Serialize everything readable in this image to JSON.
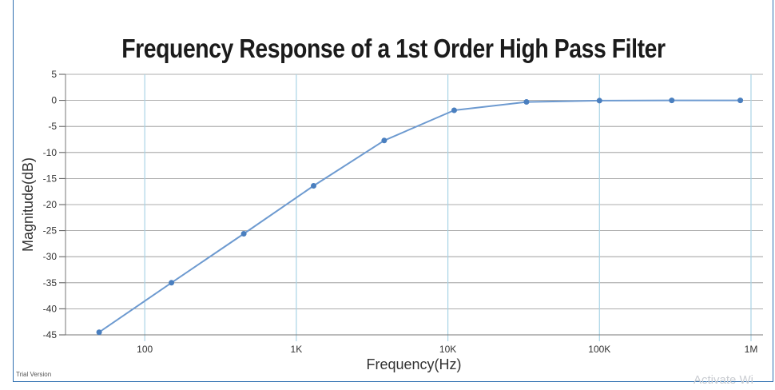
{
  "watermark_text": "Activate Wi",
  "trial_text": "Trial Version",
  "chart_data": {
    "type": "line",
    "title": "Frequency Response of a 1st Order High Pass Filter",
    "xlabel": "Frequency(Hz)",
    "ylabel": "Magnitude(dB)",
    "x_scale": "log",
    "xlim": [
      30,
      1200000
    ],
    "ylim": [
      -45,
      5
    ],
    "x_ticks": [
      {
        "value": 100,
        "label": "100"
      },
      {
        "value": 1000,
        "label": "1K"
      },
      {
        "value": 10000,
        "label": "10K"
      },
      {
        "value": 100000,
        "label": "100K"
      },
      {
        "value": 1000000,
        "label": "1M"
      }
    ],
    "y_ticks": [
      5,
      0,
      -5,
      -10,
      -15,
      -20,
      -25,
      -30,
      -35,
      -40,
      -45
    ],
    "grid": true,
    "legend": "none",
    "colors": {
      "line": "#6d9ad0",
      "marker": "#4a7fbf",
      "horizontal_grid": "#909090",
      "vertical_grid": "#a9d4e6"
    },
    "series": [
      {
        "x": [
          50,
          150,
          450,
          1300,
          3800,
          11000,
          33000,
          100000,
          300000,
          850000
        ],
        "y": [
          -44.5,
          -35,
          -25.6,
          -16.4,
          -7.7,
          -1.9,
          -0.3,
          -0.05,
          0,
          0
        ]
      }
    ]
  }
}
